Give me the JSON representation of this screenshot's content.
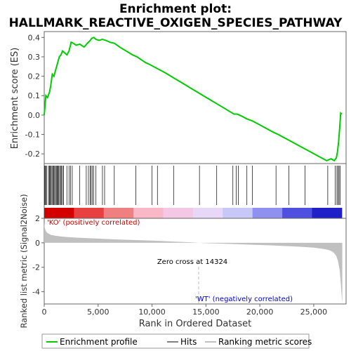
{
  "chart_data": {
    "type": "line",
    "title_line1": "Enrichment plot:",
    "title_line2": "HALLMARK_REACTIVE_OXIGEN_SPECIES_PATHWAY",
    "es_panel": {
      "ylabel": "Enrichment score (ES)",
      "ylim": [
        -0.25,
        0.43
      ],
      "yticks": [
        "0.4",
        "0.3",
        "0.2",
        "0.1",
        "0.0",
        "-0.1",
        "-0.2"
      ],
      "ytick_values": [
        0.4,
        0.3,
        0.2,
        0.1,
        0.0,
        -0.1,
        -0.2
      ],
      "series": [
        {
          "name": "Enrichment profile",
          "color": "#00cc00",
          "x": [
            0,
            150,
            300,
            500,
            600,
            750,
            900,
            1100,
            1250,
            1400,
            1550,
            1700,
            1900,
            2100,
            2300,
            2500,
            2700,
            2950,
            3300,
            3700,
            4000,
            4200,
            4400,
            4600,
            4800,
            5100,
            5400,
            5700,
            6100,
            6500,
            7000,
            7600,
            8200,
            8600,
            9000,
            9400,
            9800,
            10300,
            10800,
            11300,
            11900,
            12500,
            13100,
            13700,
            14300,
            14900,
            15500,
            16100,
            16700,
            17300,
            17600,
            17900,
            18300,
            18800,
            19300,
            19800,
            20300,
            20800,
            21300,
            21700,
            22200,
            22700,
            23200,
            23700,
            24200,
            24700,
            25200,
            25700,
            26200,
            26600,
            26900,
            27100,
            27200,
            27300,
            27400,
            27500,
            27600
          ],
          "values": [
            0.0,
            0.1,
            0.09,
            0.12,
            0.15,
            0.21,
            0.2,
            0.24,
            0.27,
            0.3,
            0.31,
            0.33,
            0.32,
            0.31,
            0.33,
            0.375,
            0.37,
            0.36,
            0.365,
            0.35,
            0.37,
            0.38,
            0.395,
            0.4,
            0.39,
            0.385,
            0.39,
            0.385,
            0.375,
            0.37,
            0.35,
            0.33,
            0.31,
            0.3,
            0.285,
            0.27,
            0.26,
            0.245,
            0.23,
            0.215,
            0.195,
            0.175,
            0.155,
            0.135,
            0.115,
            0.095,
            0.075,
            0.055,
            0.035,
            0.015,
            0.005,
            0.005,
            -0.005,
            -0.02,
            -0.03,
            -0.045,
            -0.06,
            -0.075,
            -0.09,
            -0.1,
            -0.115,
            -0.13,
            -0.145,
            -0.16,
            -0.175,
            -0.19,
            -0.205,
            -0.22,
            -0.235,
            -0.225,
            -0.235,
            -0.22,
            -0.19,
            -0.14,
            -0.07,
            0.01,
            0.005
          ]
        }
      ]
    },
    "hits_panel": {
      "hits_legend": "Hits",
      "hit_color": "#000000",
      "hit_positions": [
        30,
        80,
        150,
        250,
        420,
        500,
        560,
        640,
        720,
        800,
        880,
        960,
        1050,
        1120,
        1200,
        1280,
        1350,
        1430,
        1520,
        1600,
        1700,
        1800,
        2100,
        2300,
        2450,
        2600,
        3300,
        3900,
        4100,
        4250,
        4350,
        4450,
        4600,
        4800,
        5400,
        5600,
        6500,
        8500,
        10000,
        10500,
        12000,
        14400,
        16000,
        17500,
        17800,
        18000,
        18800,
        19300,
        21500,
        22700,
        24200,
        26300,
        27000,
        27150,
        27250,
        27350,
        27450
      ],
      "gradient_colors": [
        "#d40000",
        "#e84040",
        "#f08080",
        "#f8b8c8",
        "#f4c8e4",
        "#e8d8f8",
        "#c8c8f8",
        "#9090f0",
        "#5050e0",
        "#2020c8"
      ]
    },
    "metric_panel": {
      "ylabel": "Ranked list metric (Signal2Noise)",
      "ylim": [
        -5.0,
        2.0
      ],
      "yticks": [
        "2",
        "0",
        "-2",
        "-4"
      ],
      "ytick_values": [
        2,
        0,
        -2,
        -4
      ],
      "fill_color": "#c0c0c0",
      "x": [
        0,
        50,
        150,
        300,
        600,
        1000,
        1500,
        2000,
        3000,
        4000,
        5000,
        6000,
        7000,
        8000,
        9000,
        10000,
        11000,
        12000,
        13000,
        14000,
        14324,
        15000,
        16000,
        17000,
        18000,
        19000,
        20000,
        21000,
        22000,
        23000,
        24000,
        25000,
        25500,
        26000,
        26400,
        26700,
        26900,
        27100,
        27250,
        27400,
        27500,
        27600,
        27650
      ],
      "values": [
        1.7,
        1.2,
        0.95,
        0.8,
        0.65,
        0.58,
        0.52,
        0.48,
        0.42,
        0.38,
        0.34,
        0.3,
        0.27,
        0.24,
        0.21,
        0.18,
        0.14,
        0.1,
        0.06,
        0.02,
        0.0,
        -0.03,
        -0.06,
        -0.09,
        -0.12,
        -0.15,
        -0.18,
        -0.21,
        -0.25,
        -0.29,
        -0.34,
        -0.4,
        -0.45,
        -0.52,
        -0.6,
        -0.7,
        -0.85,
        -1.1,
        -1.5,
        -2.2,
        -3.2,
        -4.5,
        -4.9
      ],
      "pos_label": "'KO' (positively correlated)",
      "pos_color": "#cc0000",
      "neg_label": "'WT' (negatively correlated)",
      "neg_color": "#0000cc",
      "zero_cross_label": "Zero cross at 14324",
      "zero_cross": 14324
    },
    "x_axis": {
      "xlabel": "Rank in Ordered Dataset",
      "xlim": [
        0,
        28000
      ],
      "xticks": [
        "0",
        "5,000",
        "10,000",
        "15,000",
        "20,000",
        "25,000"
      ],
      "xtick_values": [
        0,
        5000,
        10000,
        15000,
        20000,
        25000
      ]
    },
    "legend": {
      "items": [
        {
          "label": "Enrichment profile",
          "color": "#00cc00",
          "kind": "line"
        },
        {
          "label": "Hits",
          "color": "#000000",
          "kind": "line"
        },
        {
          "label": "Ranking metric scores",
          "color": "#c0c0c0",
          "kind": "line"
        }
      ]
    }
  }
}
